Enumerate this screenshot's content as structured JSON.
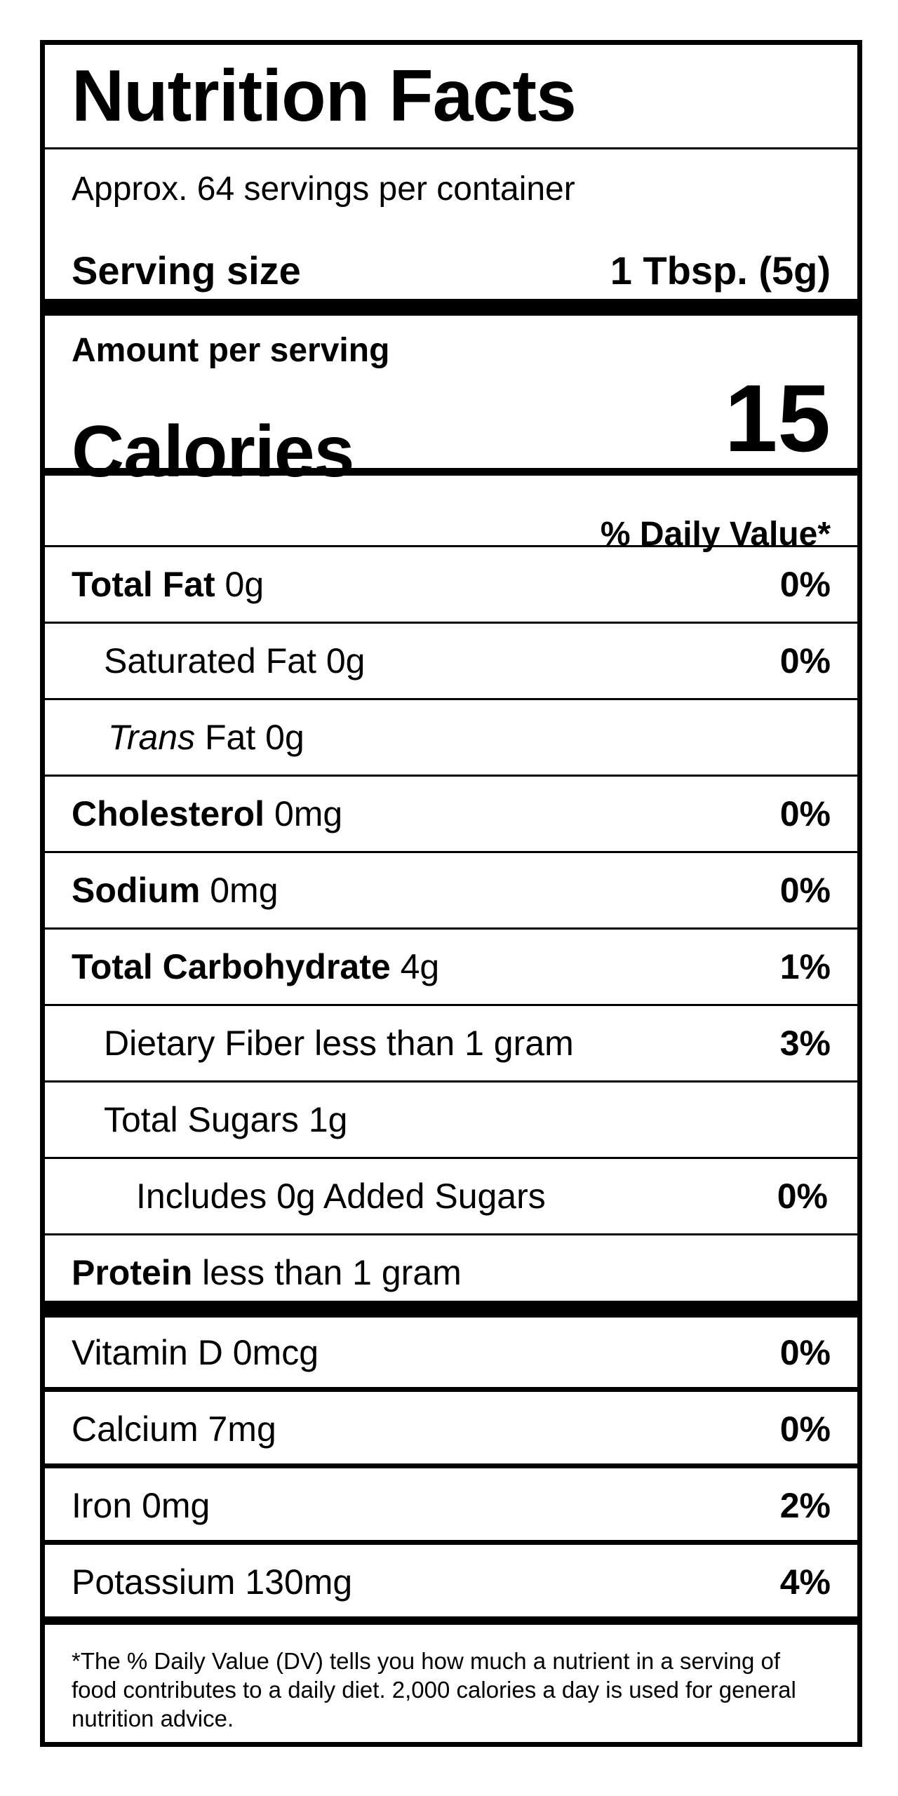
{
  "label": {
    "title": "Nutrition Facts",
    "servings_per_container": "Approx. 64 servings per container",
    "serving_size_label": "Serving size",
    "serving_size_value": "1 Tbsp. (5g)",
    "amount_per_serving": "Amount per serving",
    "calories_label": "Calories",
    "calories_value": "15",
    "daily_value_header": "% Daily Value*"
  },
  "nutrients": [
    {
      "name": "Total Fat",
      "amount": "0g",
      "dv": "0%"
    },
    {
      "name": "Saturated Fat",
      "amount": "0g",
      "dv": "0%"
    },
    {
      "name": "Trans",
      "amount": "Fat 0g",
      "dv": ""
    },
    {
      "name": "Cholesterol",
      "amount": "0mg",
      "dv": "0%"
    },
    {
      "name": "Sodium",
      "amount": "0mg",
      "dv": "0%"
    },
    {
      "name": "Total Carbohydrate",
      "amount": "4g",
      "dv": "1%"
    },
    {
      "name": "Dietary Fiber",
      "amount": "less than 1 gram",
      "dv": "3%"
    },
    {
      "name": "Total Sugars",
      "amount": "1g",
      "dv": ""
    },
    {
      "name": "Includes 0g Added Sugars",
      "amount": "",
      "dv": "0%"
    },
    {
      "name": "Protein",
      "amount": "less than 1 gram",
      "dv": ""
    }
  ],
  "vitamins": [
    {
      "name": "Vitamin D",
      "amount": "0mcg",
      "dv": "0%"
    },
    {
      "name": "Calcium",
      "amount": "7mg",
      "dv": "0%"
    },
    {
      "name": "Iron",
      "amount": "0mg",
      "dv": "2%"
    },
    {
      "name": "Potassium",
      "amount": "130mg",
      "dv": "4%"
    }
  ],
  "footnote": "*The % Daily Value (DV) tells you how much a nutrient in a serving of food contributes to a daily diet. 2,000 calories a day is used for general nutrition advice."
}
